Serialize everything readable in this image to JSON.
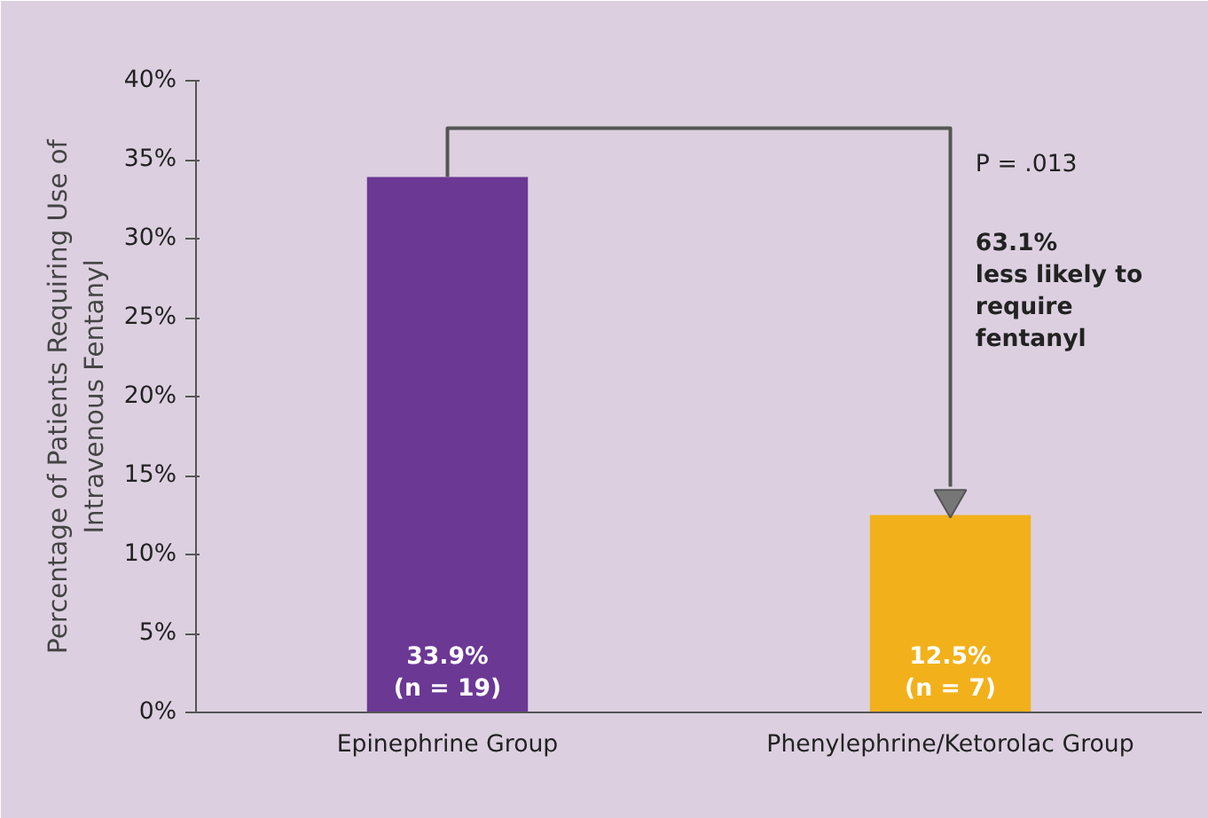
{
  "chart_data": {
    "type": "bar",
    "ylabel": "Percentage of Patients Requiring Use of Intravenous Fentanyl",
    "categories": [
      "Epinephrine Group",
      "Phenylephrine/Ketorolac Group"
    ],
    "values": [
      33.9,
      12.5
    ],
    "colors": [
      "#6b3894",
      "#f2b11b"
    ],
    "value_labels": [
      "33.9%\n(n = 19)",
      "12.5%\n(n = 7)"
    ],
    "ylim": [
      0,
      40
    ],
    "yticks": [
      {
        "value": 0,
        "label": "0%"
      },
      {
        "value": 5,
        "label": "5%"
      },
      {
        "value": 10,
        "label": "10%"
      },
      {
        "value": 15,
        "label": "15%"
      },
      {
        "value": 20,
        "label": "20%"
      },
      {
        "value": 25,
        "label": "25%"
      },
      {
        "value": 30,
        "label": "30%"
      },
      {
        "value": 35,
        "label": "35%"
      },
      {
        "value": 40,
        "label": "40%"
      }
    ],
    "annotations": [
      "P = .013",
      "63.1%\nless likely to\nrequire\nfentanyl"
    ],
    "grid": false
  }
}
